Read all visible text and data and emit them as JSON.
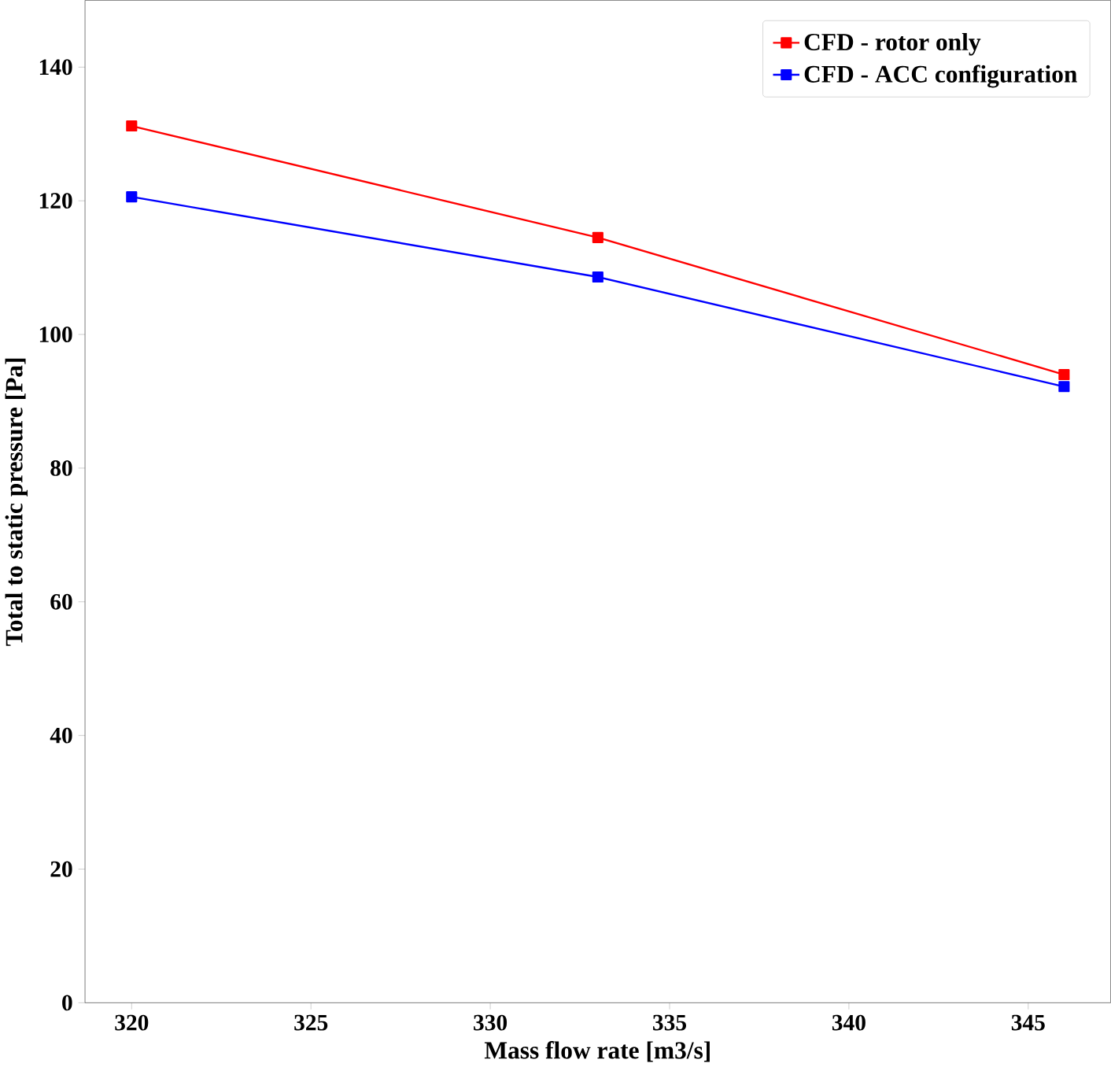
{
  "chart_data": {
    "type": "line",
    "xlabel": "Mass flow rate [m3/s]",
    "ylabel": "Total to static pressure [Pa]",
    "x": [
      320,
      333,
      346
    ],
    "series": [
      {
        "name": "CFD - rotor only",
        "color": "#ff0000",
        "values": [
          131.2,
          114.5,
          94.0
        ]
      },
      {
        "name": "CFD - ACC configuration",
        "color": "#0000ff",
        "values": [
          120.6,
          108.6,
          92.2
        ]
      }
    ],
    "xlim": [
      318.7,
      347.3
    ],
    "ylim": [
      0,
      150
    ],
    "xticks": [
      320,
      325,
      330,
      335,
      340,
      345
    ],
    "yticks": [
      0,
      20,
      40,
      60,
      80,
      100,
      120,
      140
    ],
    "legend": "top right",
    "marker": "square",
    "line_style": "solid",
    "grid": false
  }
}
